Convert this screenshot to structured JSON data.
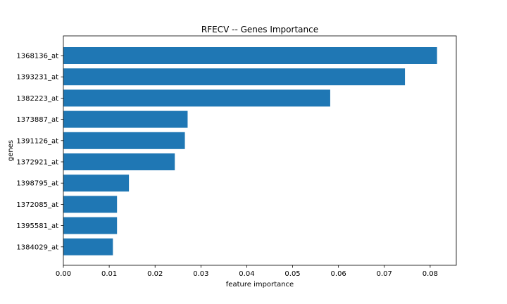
{
  "chart_data": {
    "type": "bar",
    "orientation": "horizontal",
    "title": "RFECV -- Genes Importance",
    "xlabel": "feature importance",
    "ylabel": "genes",
    "categories": [
      "1368136_at",
      "1393231_at",
      "1382223_at",
      "1373887_at",
      "1391126_at",
      "1372921_at",
      "1398795_at",
      "1372085_at",
      "1395581_at",
      "1384029_at"
    ],
    "values": [
      0.0815,
      0.0745,
      0.0582,
      0.0271,
      0.0265,
      0.0243,
      0.0143,
      0.0117,
      0.0117,
      0.0108
    ],
    "xlim": [
      0.0,
      0.0857
    ],
    "xticks": [
      "0.00",
      "0.01",
      "0.02",
      "0.03",
      "0.04",
      "0.05",
      "0.06",
      "0.07",
      "0.08"
    ],
    "grid": false,
    "bar_color": "#1f77b4"
  }
}
